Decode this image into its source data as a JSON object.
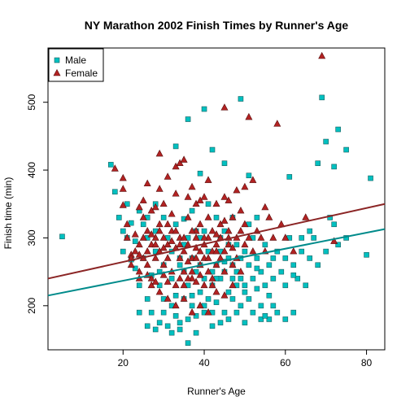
{
  "chart_data": {
    "type": "scatter",
    "title": "NY Marathon 2002 Finish Times by Runner's Age",
    "xlabel": "Runner's Age",
    "ylabel": "Finish time (min)",
    "xlim": [
      1.5,
      84.5
    ],
    "ylim": [
      135,
      580
    ],
    "xticks": [
      20,
      40,
      60,
      80
    ],
    "yticks": [
      200,
      300,
      400,
      500
    ],
    "grid": false,
    "legend": {
      "placement": "top-left"
    },
    "series": [
      {
        "name": "Male",
        "marker": "square",
        "color": "#00C0C0",
        "points": [
          [
            5,
            302
          ],
          [
            17,
            408
          ],
          [
            18,
            368
          ],
          [
            19,
            330
          ],
          [
            20,
            310
          ],
          [
            20,
            280
          ],
          [
            21,
            350
          ],
          [
            21,
            300
          ],
          [
            22,
            268
          ],
          [
            22,
            322
          ],
          [
            23,
            295
          ],
          [
            23,
            255
          ],
          [
            24,
            340
          ],
          [
            24,
            230
          ],
          [
            25,
            320
          ],
          [
            25,
            270
          ],
          [
            26,
            210
          ],
          [
            26,
            300
          ],
          [
            27,
            245
          ],
          [
            27,
            190
          ],
          [
            28,
            350
          ],
          [
            28,
            280
          ],
          [
            29,
            230
          ],
          [
            29,
            175
          ],
          [
            30,
            260
          ],
          [
            30,
            210
          ],
          [
            31,
            300
          ],
          [
            31,
            170
          ],
          [
            32,
            240
          ],
          [
            32,
            200
          ],
          [
            33,
            320
          ],
          [
            33,
            185
          ],
          [
            34,
            260
          ],
          [
            34,
            165
          ],
          [
            35,
            210
          ],
          [
            35,
            290
          ],
          [
            36,
            230
          ],
          [
            36,
            180
          ],
          [
            37,
            270
          ],
          [
            37,
            200
          ],
          [
            38,
            250
          ],
          [
            38,
            160
          ],
          [
            39,
            300
          ],
          [
            39,
            220
          ],
          [
            40,
            240
          ],
          [
            40,
            190
          ],
          [
            41,
            280
          ],
          [
            41,
            210
          ],
          [
            42,
            230
          ],
          [
            42,
            170
          ],
          [
            43,
            260
          ],
          [
            43,
            205
          ],
          [
            44,
            300
          ],
          [
            44,
            240
          ],
          [
            45,
            250
          ],
          [
            45,
            190
          ],
          [
            46,
            270
          ],
          [
            46,
            220
          ],
          [
            47,
            260
          ],
          [
            47,
            210
          ],
          [
            48,
            290
          ],
          [
            48,
            230
          ],
          [
            49,
            240
          ],
          [
            49,
            200
          ],
          [
            50,
            280
          ],
          [
            50,
            220
          ],
          [
            51,
            260
          ],
          [
            51,
            210
          ],
          [
            52,
            300
          ],
          [
            52,
            240
          ],
          [
            53,
            270
          ],
          [
            53,
            225
          ],
          [
            54,
            250
          ],
          [
            54,
            200
          ],
          [
            55,
            290
          ],
          [
            55,
            230
          ],
          [
            56,
            260
          ],
          [
            56,
            215
          ],
          [
            57,
            240
          ],
          [
            58,
            280
          ],
          [
            59,
            250
          ],
          [
            60,
            270
          ],
          [
            60,
            230
          ],
          [
            61,
            300
          ],
          [
            62,
            260
          ],
          [
            63,
            240
          ],
          [
            64,
            300
          ],
          [
            65,
            230
          ],
          [
            66,
            270
          ],
          [
            67,
            300
          ],
          [
            68,
            260
          ],
          [
            70,
            280
          ],
          [
            71,
            330
          ],
          [
            72,
            320
          ],
          [
            73,
            290
          ],
          [
            75,
            300
          ],
          [
            80,
            275
          ],
          [
            42,
            430
          ],
          [
            36,
            475
          ],
          [
            40,
            490
          ],
          [
            49,
            505
          ],
          [
            69,
            507
          ],
          [
            73,
            460
          ],
          [
            70,
            442
          ],
          [
            75,
            430
          ],
          [
            68,
            410
          ],
          [
            72,
            405
          ],
          [
            61,
            390
          ],
          [
            51,
            392
          ],
          [
            45,
            410
          ],
          [
            39,
            395
          ],
          [
            33,
            435
          ],
          [
            35,
            328
          ],
          [
            37,
            340
          ],
          [
            39,
            260
          ],
          [
            41,
            350
          ],
          [
            43,
            330
          ],
          [
            45,
            310
          ],
          [
            47,
            330
          ],
          [
            49,
            270
          ],
          [
            51,
            320
          ],
          [
            53,
            330
          ],
          [
            26,
            330
          ],
          [
            28,
            310
          ],
          [
            30,
            330
          ],
          [
            32,
            280
          ],
          [
            34,
            270
          ],
          [
            44,
            280
          ],
          [
            46,
            290
          ],
          [
            48,
            250
          ],
          [
            50,
            230
          ],
          [
            36,
            300
          ],
          [
            38,
            310
          ],
          [
            40,
            310
          ],
          [
            42,
            250
          ],
          [
            24,
            190
          ],
          [
            26,
            170
          ],
          [
            28,
            165
          ],
          [
            30,
            190
          ],
          [
            32,
            160
          ],
          [
            34,
            175
          ],
          [
            36,
            145
          ],
          [
            38,
            185
          ],
          [
            40,
            200
          ],
          [
            42,
            190
          ],
          [
            44,
            175
          ],
          [
            46,
            180
          ],
          [
            48,
            190
          ],
          [
            50,
            175
          ],
          [
            52,
            190
          ],
          [
            54,
            180
          ],
          [
            56,
            180
          ],
          [
            58,
            190
          ],
          [
            62,
            190
          ],
          [
            60,
            180
          ],
          [
            55,
            185
          ],
          [
            57,
            200
          ],
          [
            47,
            240
          ],
          [
            43,
            240
          ],
          [
            37,
            215
          ],
          [
            33,
            215
          ],
          [
            29,
            250
          ],
          [
            35,
            250
          ],
          [
            45,
            265
          ],
          [
            53,
            255
          ],
          [
            57,
            270
          ],
          [
            62,
            245
          ],
          [
            64,
            280
          ],
          [
            66,
            310
          ],
          [
            81,
            388
          ]
        ]
      },
      {
        "name": "Female",
        "marker": "triangle",
        "color": "#B22222",
        "points": [
          [
            18,
            402
          ],
          [
            20,
            388
          ],
          [
            20,
            372
          ],
          [
            20,
            348
          ],
          [
            21,
            300
          ],
          [
            21,
            320
          ],
          [
            22,
            275
          ],
          [
            22,
            260
          ],
          [
            23,
            280
          ],
          [
            23,
            305
          ],
          [
            24,
            290
          ],
          [
            24,
            250
          ],
          [
            25,
            270
          ],
          [
            25,
            330
          ],
          [
            26,
            310
          ],
          [
            26,
            260
          ],
          [
            27,
            290
          ],
          [
            27,
            240
          ],
          [
            28,
            300
          ],
          [
            28,
            270
          ],
          [
            29,
            280
          ],
          [
            29,
            320
          ],
          [
            30,
            300
          ],
          [
            30,
            260
          ],
          [
            31,
            290
          ],
          [
            31,
            270
          ],
          [
            32,
            310
          ],
          [
            32,
            250
          ],
          [
            33,
            285
          ],
          [
            33,
            230
          ],
          [
            34,
            300
          ],
          [
            34,
            270
          ],
          [
            35,
            280
          ],
          [
            35,
            250
          ],
          [
            36,
            290
          ],
          [
            36,
            330
          ],
          [
            37,
            270
          ],
          [
            37,
            240
          ],
          [
            38,
            300
          ],
          [
            38,
            310
          ],
          [
            39,
            280
          ],
          [
            39,
            260
          ],
          [
            40,
            290
          ],
          [
            40,
            270
          ],
          [
            41,
            300
          ],
          [
            41,
            250
          ],
          [
            42,
            280
          ],
          [
            42,
            230
          ],
          [
            43,
            260
          ],
          [
            43,
            290
          ],
          [
            44,
            270
          ],
          [
            44,
            300
          ],
          [
            45,
            250
          ],
          [
            45,
            280
          ],
          [
            46,
            290
          ],
          [
            46,
            310
          ],
          [
            47,
            260
          ],
          [
            47,
            330
          ],
          [
            48,
            270
          ],
          [
            48,
            300
          ],
          [
            49,
            250
          ],
          [
            50,
            290
          ],
          [
            50,
            320
          ],
          [
            52,
            280
          ],
          [
            53,
            310
          ],
          [
            54,
            300
          ],
          [
            55,
            280
          ],
          [
            56,
            330
          ],
          [
            57,
            300
          ],
          [
            59,
            320
          ],
          [
            60,
            300
          ],
          [
            62,
            280
          ],
          [
            65,
            330
          ],
          [
            72,
            295
          ],
          [
            69,
            568
          ],
          [
            45,
            492
          ],
          [
            51,
            478
          ],
          [
            58,
            468
          ],
          [
            29,
            424
          ],
          [
            31,
            390
          ],
          [
            33,
            405
          ],
          [
            34,
            410
          ],
          [
            35,
            415
          ],
          [
            26,
            380
          ],
          [
            29,
            372
          ],
          [
            30,
            350
          ],
          [
            24,
            345
          ],
          [
            27,
            340
          ],
          [
            33,
            365
          ],
          [
            36,
            360
          ],
          [
            38,
            350
          ],
          [
            40,
            360
          ],
          [
            43,
            350
          ],
          [
            46,
            355
          ],
          [
            48,
            370
          ],
          [
            50,
            375
          ],
          [
            52,
            385
          ],
          [
            55,
            345
          ],
          [
            49,
            340
          ],
          [
            45,
            360
          ],
          [
            41,
            385
          ],
          [
            39,
            355
          ],
          [
            37,
            375
          ],
          [
            32,
            335
          ],
          [
            28,
            345
          ],
          [
            25,
            355
          ],
          [
            27,
            230
          ],
          [
            29,
            220
          ],
          [
            31,
            210
          ],
          [
            33,
            200
          ],
          [
            35,
            210
          ],
          [
            37,
            190
          ],
          [
            39,
            200
          ],
          [
            41,
            190
          ],
          [
            43,
            220
          ],
          [
            45,
            215
          ],
          [
            47,
            230
          ],
          [
            35,
            230
          ],
          [
            31,
            235
          ],
          [
            34,
            240
          ],
          [
            36,
            240
          ],
          [
            38,
            235
          ],
          [
            40,
            230
          ],
          [
            42,
            240
          ],
          [
            37,
            250
          ],
          [
            39,
            245
          ],
          [
            41,
            270
          ],
          [
            43,
            280
          ],
          [
            38,
            270
          ],
          [
            36,
            265
          ],
          [
            34,
            290
          ],
          [
            32,
            295
          ],
          [
            30,
            285
          ],
          [
            28,
            290
          ],
          [
            26,
            280
          ],
          [
            24,
            275
          ],
          [
            22,
            270
          ],
          [
            30,
            245
          ],
          [
            28,
            235
          ],
          [
            26,
            245
          ],
          [
            24,
            240
          ],
          [
            38,
            285
          ],
          [
            40,
            300
          ],
          [
            42,
            310
          ],
          [
            44,
            320
          ],
          [
            46,
            300
          ],
          [
            39,
            320
          ],
          [
            37,
            310
          ],
          [
            35,
            300
          ],
          [
            33,
            310
          ],
          [
            31,
            320
          ],
          [
            29,
            310
          ],
          [
            27,
            305
          ],
          [
            25,
            300
          ],
          [
            41,
            330
          ],
          [
            43,
            305
          ],
          [
            45,
            325
          ],
          [
            47,
            285
          ],
          [
            49,
            310
          ],
          [
            51,
            300
          ]
        ]
      }
    ],
    "fit_lines": [
      {
        "series": "Male",
        "x": [
          1.5,
          84.5
        ],
        "y": [
          215,
          313
        ]
      },
      {
        "series": "Female",
        "x": [
          1.5,
          84.5
        ],
        "y": [
          240,
          350
        ]
      }
    ]
  }
}
